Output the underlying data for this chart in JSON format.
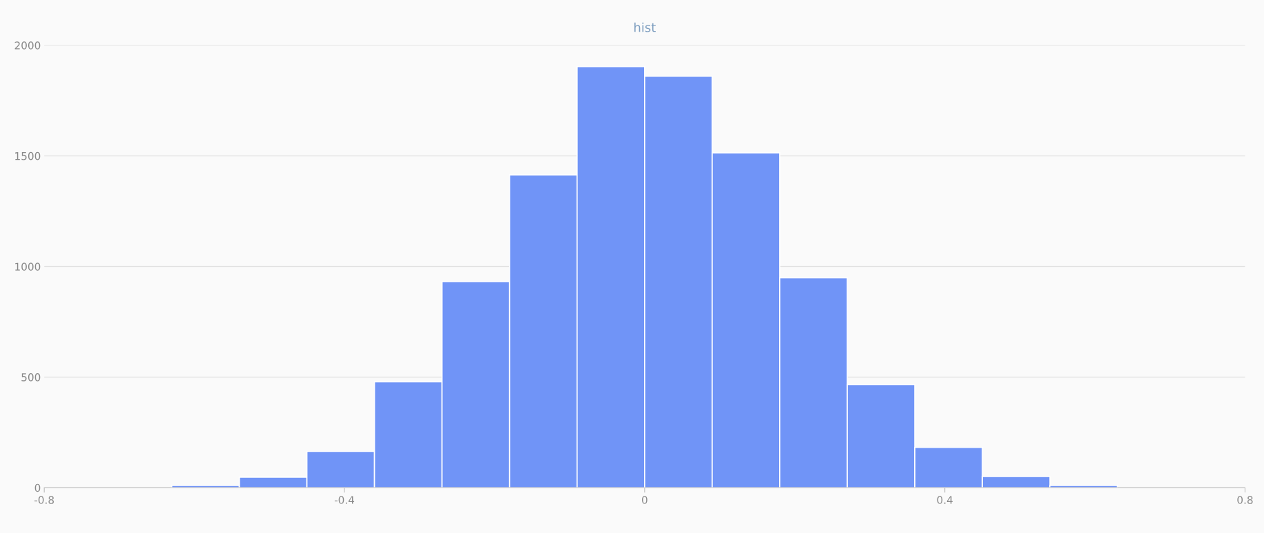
{
  "chart_data": {
    "type": "histogram",
    "title": "hist",
    "bins": [
      -0.72,
      -0.63,
      -0.54,
      -0.45,
      -0.36,
      -0.27,
      -0.18,
      -0.09,
      0,
      0.09,
      0.18,
      0.27,
      0.36,
      0.45,
      0.54,
      0.63,
      0.72
    ],
    "values": [
      null,
      10,
      48,
      164,
      479,
      932,
      1414,
      1904,
      1860,
      1514,
      949,
      466,
      182,
      51,
      10,
      null
    ],
    "color": "#7094f7",
    "xlim": [
      -0.8,
      0.8
    ],
    "xticks": [
      -0.8,
      -0.4,
      0,
      0.4,
      0.8
    ],
    "ylim": [
      0,
      2000
    ],
    "yticks": [
      0,
      500,
      1000,
      1500,
      2000
    ],
    "grid": "y"
  }
}
